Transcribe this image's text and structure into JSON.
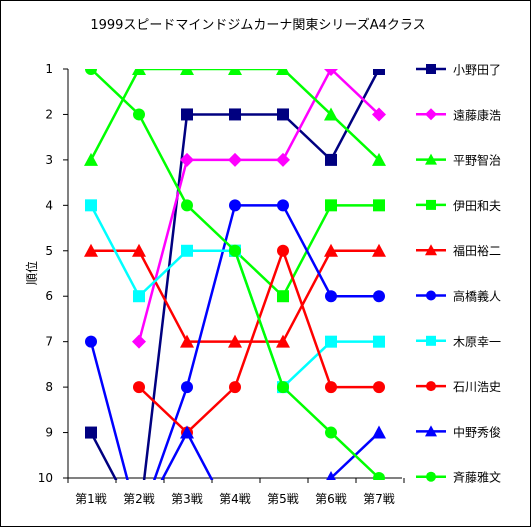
{
  "chart_data": {
    "type": "line",
    "title": "1999スピードマインドジムカーナ関東シリーズA4クラス",
    "xlabel": "",
    "ylabel": "順位",
    "categories": [
      "第1戦",
      "第2戦",
      "第3戦",
      "第4戦",
      "第5戦",
      "第6戦",
      "第7戦"
    ],
    "ylim": [
      1,
      10
    ],
    "y_ticks": [
      1,
      2,
      3,
      4,
      5,
      6,
      7,
      8,
      9,
      10
    ],
    "y_reversed": true,
    "grid": false,
    "legend_position": "right",
    "series": [
      {
        "name": "小野田了",
        "color": "#000080",
        "marker": "square",
        "values": [
          9,
          11,
          2,
          2,
          2,
          3,
          1
        ]
      },
      {
        "name": "遠藤康浩",
        "color": "#ff00ff",
        "marker": "diamond",
        "values": [
          null,
          7,
          3,
          3,
          3,
          1,
          2
        ]
      },
      {
        "name": "平野智治",
        "color": "#00ff00",
        "marker": "triangle",
        "values": [
          3,
          1,
          1,
          1,
          1,
          2,
          3
        ]
      },
      {
        "name": "伊田和夫",
        "color": "#00ff00",
        "marker": "square",
        "values": [
          null,
          null,
          null,
          5,
          6,
          4,
          4
        ]
      },
      {
        "name": "福田裕二",
        "color": "#ff0000",
        "marker": "triangle",
        "values": [
          5,
          5,
          7,
          7,
          7,
          5,
          5
        ]
      },
      {
        "name": "高橋義人",
        "color": "#0000ff",
        "marker": "circle",
        "values": [
          7,
          11,
          8,
          4,
          4,
          6,
          6
        ]
      },
      {
        "name": "木原幸一",
        "color": "#00ffff",
        "marker": "square",
        "values": [
          4,
          6,
          5,
          5,
          8,
          7,
          7
        ]
      },
      {
        "name": "石川浩史",
        "color": "#ff0000",
        "marker": "circle",
        "values": [
          null,
          8,
          9,
          8,
          5,
          8,
          8
        ]
      },
      {
        "name": "中野秀俊",
        "color": "#0000ff",
        "marker": "triangle",
        "values": [
          null,
          11,
          9,
          11,
          null,
          10,
          9
        ]
      },
      {
        "name": "斉藤雅文",
        "color": "#00ff00",
        "marker": "circle",
        "values": [
          1,
          2,
          4,
          5,
          8,
          9,
          10
        ]
      }
    ]
  }
}
